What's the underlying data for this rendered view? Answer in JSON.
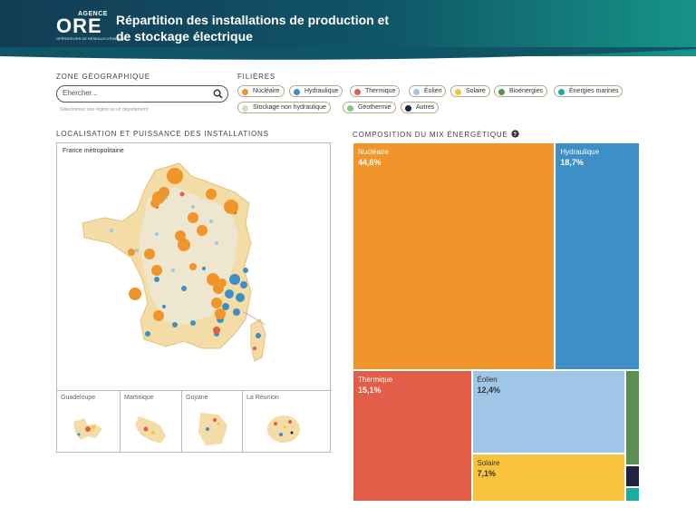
{
  "header": {
    "logo_agence": "AGENCE",
    "logo_ore": "ORE",
    "logo_sub": "OPÉRATEURS DE RÉSEAUX D'ÉNERGIE",
    "title": "Répartition des installations de production et de stockage électrique"
  },
  "zone": {
    "label": "ZONE GÉOGRAPHIQUE",
    "placeholder": "Ehercher...",
    "hint": "Sélectionnez une région ou un département"
  },
  "filieres": {
    "label": "FILIÈRES",
    "items": [
      {
        "label": "Nucléaire",
        "color": "#f0952a"
      },
      {
        "label": "Hydraulique",
        "color": "#3d8fc6"
      },
      {
        "label": "Thermique",
        "color": "#e35e48"
      },
      {
        "label": "Éolien",
        "color": "#9fc6e6"
      },
      {
        "label": "Solaire",
        "color": "#f8c43d"
      },
      {
        "label": "Bioénergies",
        "color": "#5b8f52"
      },
      {
        "label": "Énergies marines",
        "color": "#1aaea2"
      },
      {
        "label": "Stockage non hydraulique",
        "color": "#c9e3c7"
      },
      {
        "label": "Géothermie",
        "color": "#7fc97a"
      },
      {
        "label": "Autres",
        "color": "#1d2340"
      }
    ]
  },
  "map": {
    "section_label": "LOCALISATION ET PUISSANCE DES INSTALLATIONS",
    "label": "France métropolitaine",
    "dom": [
      "Guadeloupe",
      "Martinique",
      "Guyane",
      "La Réunion"
    ]
  },
  "mix": {
    "section_label": "COMPOSITION DU MIX ÉNERGÉTIQUE",
    "help_icon": "question-circle-icon"
  },
  "chart_data": {
    "type": "treemap",
    "title": "COMPOSITION DU MIX ÉNERGÉTIQUE",
    "series": [
      {
        "name": "Nucléaire",
        "value": 44.6,
        "label": "44,6%",
        "color": "#f0952a"
      },
      {
        "name": "Hydraulique",
        "value": 18.7,
        "label": "18,7%",
        "color": "#3d8fc6"
      },
      {
        "name": "Thermique",
        "value": 15.1,
        "label": "15,1%",
        "color": "#e35e48"
      },
      {
        "name": "Éolien",
        "value": 12.4,
        "label": "12,4%",
        "color": "#9fc6e6"
      },
      {
        "name": "Solaire",
        "value": 7.1,
        "label": "7,1%",
        "color": "#f8c43d"
      },
      {
        "name": "Bioénergies",
        "value": 1.3,
        "label": "",
        "color": "#5b8f52"
      },
      {
        "name": "Autres",
        "value": 0.3,
        "label": "",
        "color": "#1d2340"
      },
      {
        "name": "Énergies marines",
        "value": 0.2,
        "label": "",
        "color": "#1aaea2"
      }
    ]
  }
}
